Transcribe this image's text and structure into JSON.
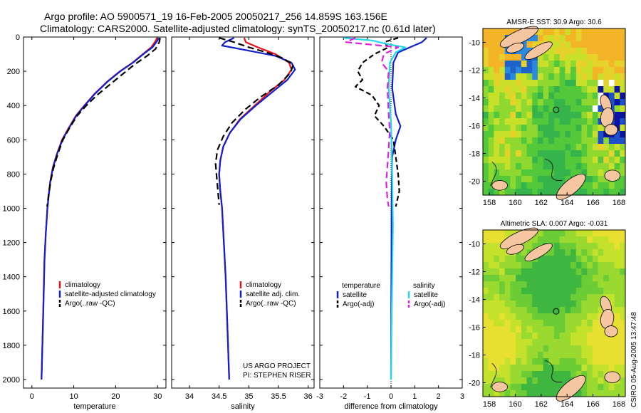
{
  "header": {
    "line1": "Argo profile: AO 5900571_19 16-Feb-2005 20050217_256 14.859S 163.156E",
    "line2": "Climatology: CARS2000. Satellite-adjusted climatology: synTS_20050217.nc (0.61d later)"
  },
  "stamp": "CSIRO 05-Aug-2005 13:47:48",
  "chart_data": [
    {
      "type": "line",
      "name": "temperature-profile",
      "xlabel": "temperature",
      "ylabel": "",
      "xlim": [
        -2,
        32
      ],
      "ylim": [
        2050,
        0
      ],
      "xticks": [
        0,
        10,
        20,
        30
      ],
      "yticks": [
        0,
        200,
        400,
        600,
        800,
        1000,
        1200,
        1400,
        1600,
        1800,
        2000
      ],
      "legend": [
        "climatology",
        "satellite-adjusted climatology",
        "Argo(..raw -QC)"
      ],
      "series": [
        {
          "name": "climatology",
          "color": "#e8141a",
          "dash": "",
          "points": [
            [
              29.8,
              5
            ],
            [
              29.6,
              20
            ],
            [
              28.5,
              60
            ],
            [
              26.5,
              100
            ],
            [
              24.0,
              150
            ],
            [
              21.0,
              200
            ],
            [
              18.0,
              260
            ],
            [
              15.0,
              330
            ],
            [
              12.5,
              400
            ],
            [
              10.5,
              460
            ],
            [
              8.8,
              530
            ],
            [
              7.2,
              600
            ],
            [
              6.0,
              680
            ],
            [
              5.0,
              760
            ],
            [
              4.4,
              840
            ],
            [
              4.0,
              920
            ],
            [
              3.7,
              1000
            ],
            [
              3.3,
              1150
            ],
            [
              3.0,
              1300
            ],
            [
              2.8,
              1500
            ],
            [
              2.6,
              1700
            ],
            [
              2.45,
              1850
            ],
            [
              2.3,
              2000
            ]
          ]
        },
        {
          "name": "satellite-adjusted climatology",
          "color": "#1020cc",
          "dash": "",
          "points": [
            [
              30.4,
              5
            ],
            [
              30.0,
              20
            ],
            [
              28.8,
              60
            ],
            [
              26.6,
              100
            ],
            [
              24.1,
              150
            ],
            [
              21.1,
              200
            ],
            [
              18.1,
              260
            ],
            [
              15.1,
              330
            ],
            [
              12.6,
              400
            ],
            [
              10.6,
              460
            ],
            [
              8.9,
              530
            ],
            [
              7.3,
              600
            ],
            [
              6.05,
              680
            ],
            [
              5.05,
              760
            ],
            [
              4.45,
              840
            ],
            [
              4.05,
              920
            ],
            [
              3.72,
              1000
            ],
            [
              3.32,
              1150
            ],
            [
              3.02,
              1300
            ],
            [
              2.82,
              1500
            ],
            [
              2.62,
              1700
            ],
            [
              2.46,
              1850
            ],
            [
              2.3,
              2000
            ]
          ]
        },
        {
          "name": "Argo(..raw -QC)",
          "color": "#000000",
          "dash": "9,5",
          "points": [
            [
              30.6,
              5
            ],
            [
              30.4,
              30
            ],
            [
              29.5,
              70
            ],
            [
              27.5,
              110
            ],
            [
              24.5,
              160
            ],
            [
              21.5,
              220
            ],
            [
              18.5,
              280
            ],
            [
              15.5,
              340
            ],
            [
              13.0,
              400
            ],
            [
              10.8,
              460
            ],
            [
              9.0,
              530
            ],
            [
              7.4,
              600
            ],
            [
              6.1,
              690
            ],
            [
              5.1,
              770
            ],
            [
              4.5,
              840
            ],
            [
              4.0,
              920
            ],
            [
              3.65,
              990
            ]
          ]
        }
      ]
    },
    {
      "type": "line",
      "name": "salinity-profile",
      "xlabel": "salinity",
      "ylabel": "",
      "xlim": [
        33.7,
        36.1
      ],
      "ylim": [
        2050,
        0
      ],
      "xticks": [
        34,
        34.5,
        35,
        35.5,
        36
      ],
      "xtick_labels": [
        "34",
        "34.5",
        "35",
        "35.5",
        "36"
      ],
      "legend": [
        "climatology",
        "satellite adj. clim.",
        "Argo(..raw -QC)"
      ],
      "annotation": [
        "US ARGO PROJECT",
        "PI: STEPHEN RISER"
      ],
      "series": [
        {
          "name": "climatology",
          "color": "#e8141a",
          "dash": "",
          "points": [
            [
              34.92,
              5
            ],
            [
              34.95,
              30
            ],
            [
              35.15,
              60
            ],
            [
              35.45,
              100
            ],
            [
              35.68,
              150
            ],
            [
              35.72,
              190
            ],
            [
              35.6,
              250
            ],
            [
              35.35,
              320
            ],
            [
              35.1,
              400
            ],
            [
              34.85,
              480
            ],
            [
              34.68,
              560
            ],
            [
              34.57,
              640
            ],
            [
              34.52,
              720
            ],
            [
              34.5,
              800
            ],
            [
              34.52,
              900
            ],
            [
              34.55,
              1000
            ],
            [
              34.58,
              1200
            ],
            [
              34.61,
              1400
            ],
            [
              34.63,
              1600
            ],
            [
              34.65,
              1800
            ],
            [
              34.67,
              2000
            ]
          ]
        },
        {
          "name": "satellite adj. clim.",
          "color": "#1020cc",
          "dash": "",
          "points": [
            [
              34.75,
              5
            ],
            [
              34.6,
              30
            ],
            [
              34.55,
              50
            ],
            [
              35.0,
              80
            ],
            [
              35.45,
              110
            ],
            [
              35.72,
              150
            ],
            [
              35.78,
              190
            ],
            [
              35.65,
              250
            ],
            [
              35.4,
              320
            ],
            [
              35.12,
              400
            ],
            [
              34.86,
              480
            ],
            [
              34.68,
              560
            ],
            [
              34.57,
              640
            ],
            [
              34.52,
              720
            ],
            [
              34.5,
              800
            ],
            [
              34.52,
              900
            ],
            [
              34.55,
              1000
            ],
            [
              34.58,
              1200
            ],
            [
              34.61,
              1400
            ],
            [
              34.63,
              1600
            ],
            [
              34.65,
              1800
            ],
            [
              34.67,
              2000
            ]
          ]
        },
        {
          "name": "Argo(..raw -QC)",
          "color": "#000000",
          "dash": "9,5",
          "points": [
            [
              34.5,
              5
            ],
            [
              34.75,
              30
            ],
            [
              35.0,
              60
            ],
            [
              35.3,
              90
            ],
            [
              35.55,
              120
            ],
            [
              35.75,
              160
            ],
            [
              35.7,
              210
            ],
            [
              35.5,
              280
            ],
            [
              35.2,
              350
            ],
            [
              34.95,
              420
            ],
            [
              34.72,
              500
            ],
            [
              34.57,
              580
            ],
            [
              34.47,
              660
            ],
            [
              34.44,
              740
            ],
            [
              34.46,
              820
            ],
            [
              34.48,
              900
            ],
            [
              34.5,
              980
            ]
          ]
        }
      ]
    },
    {
      "type": "line",
      "name": "difference-profile",
      "xlabel": "difference from climatology",
      "ylabel": "",
      "xlim": [
        -3,
        3
      ],
      "ylim": [
        2050,
        0
      ],
      "xticks": [
        -3,
        -2,
        -1,
        0,
        1,
        2,
        3
      ],
      "legend_left": [
        "temperature",
        "satellite",
        "Argo(-adj)"
      ],
      "legend_right": [
        "salinity",
        "satellite",
        "Argo(-adj)"
      ],
      "series": [
        {
          "name": "temperature satellite",
          "color": "#1020cc",
          "dash": "",
          "points": [
            [
              1.5,
              5
            ],
            [
              1.3,
              30
            ],
            [
              0.8,
              60
            ],
            [
              0.3,
              90
            ],
            [
              0.1,
              150
            ],
            [
              0.05,
              300
            ],
            [
              0.2,
              450
            ],
            [
              0.4,
              520
            ],
            [
              0.2,
              600
            ],
            [
              0.05,
              700
            ],
            [
              0.03,
              900
            ],
            [
              0.02,
              1200
            ],
            [
              0.01,
              1600
            ],
            [
              0.0,
              2000
            ]
          ]
        },
        {
          "name": "temperature Argo(-adj)",
          "color": "#000000",
          "dash": "7,4",
          "points": [
            [
              0.3,
              5
            ],
            [
              -0.3,
              30
            ],
            [
              -0.1,
              60
            ],
            [
              -0.7,
              100
            ],
            [
              -1.2,
              150
            ],
            [
              -1.4,
              200
            ],
            [
              -1.2,
              250
            ],
            [
              -1.5,
              290
            ],
            [
              -0.8,
              340
            ],
            [
              -0.5,
              400
            ],
            [
              -0.7,
              460
            ],
            [
              -0.3,
              520
            ],
            [
              0.1,
              600
            ],
            [
              0.2,
              700
            ],
            [
              0.3,
              800
            ],
            [
              0.35,
              900
            ],
            [
              0.2,
              990
            ]
          ]
        },
        {
          "name": "salinity satellite",
          "color": "#22d8e8",
          "dash": "",
          "points": [
            [
              -2.0,
              5
            ],
            [
              -0.8,
              20
            ],
            [
              -0.2,
              40
            ],
            [
              0.6,
              60
            ],
            [
              0.2,
              90
            ],
            [
              -0.05,
              150
            ],
            [
              -0.1,
              300
            ],
            [
              0.0,
              500
            ],
            [
              0.05,
              800
            ],
            [
              0.08,
              1100
            ],
            [
              0.05,
              1400
            ],
            [
              0.02,
              1700
            ],
            [
              0.0,
              2000
            ]
          ]
        },
        {
          "name": "salinity Argo(-adj)",
          "color": "#dd22dd",
          "dash": "9,5",
          "points": [
            [
              -1.5,
              5
            ],
            [
              -1.9,
              30
            ],
            [
              0.3,
              60
            ],
            [
              -0.3,
              100
            ],
            [
              -0.4,
              150
            ],
            [
              -0.1,
              200
            ],
            [
              -0.15,
              300
            ],
            [
              -0.1,
              450
            ],
            [
              -0.05,
              550
            ],
            [
              -0.1,
              650
            ],
            [
              -0.15,
              750
            ],
            [
              -0.2,
              850
            ],
            [
              -0.15,
              950
            ],
            [
              -0.1,
              990
            ]
          ]
        }
      ]
    },
    {
      "type": "heatmap",
      "name": "sst-map",
      "title": "AMSR-E SST: 30.9 Argo: 30.6",
      "xlim": [
        157.5,
        168.5
      ],
      "ylim": [
        -21,
        -9
      ],
      "xticks": [
        158,
        160,
        162,
        164,
        166,
        168
      ],
      "yticks": [
        -10,
        -12,
        -14,
        -16,
        -18,
        -20
      ],
      "marker": {
        "lon": 163.156,
        "lat": -14.859
      }
    },
    {
      "type": "heatmap",
      "name": "sla-map",
      "title": "Altimetric SLA: 0.007 Argo: -0.031",
      "xlim": [
        157.5,
        168.5
      ],
      "ylim": [
        -21,
        -9
      ],
      "xticks": [
        158,
        160,
        162,
        164,
        166,
        168
      ],
      "yticks": [
        -10,
        -12,
        -14,
        -16,
        -18,
        -20
      ],
      "marker": {
        "lon": 163.156,
        "lat": -14.859
      }
    }
  ]
}
